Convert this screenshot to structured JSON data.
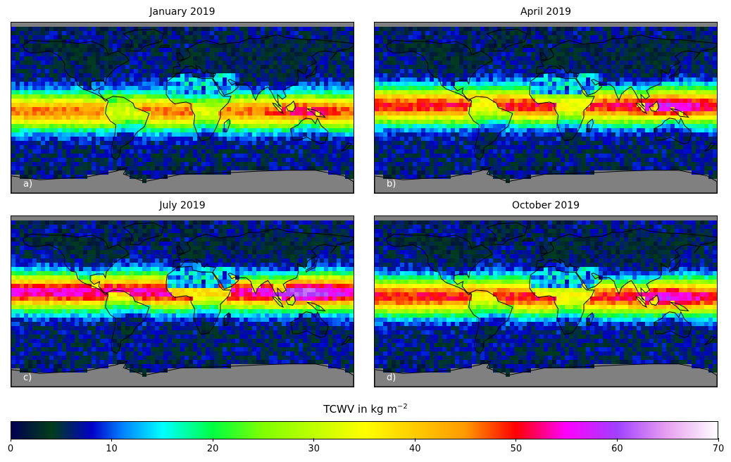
{
  "panels": [
    {
      "title": "January 2019",
      "label": "a)",
      "itcz_shift": -4,
      "wet_strength": 0.9
    },
    {
      "title": "April 2019",
      "label": "b)",
      "itcz_shift": 2,
      "wet_strength": 1.0
    },
    {
      "title": "July 2019",
      "label": "c)",
      "itcz_shift": 10,
      "wet_strength": 1.1
    },
    {
      "title": "October 2019",
      "label": "d)",
      "itcz_shift": 5,
      "wet_strength": 1.0
    }
  ],
  "colorbar": {
    "title_main": "TCWV in kg m",
    "title_exp": "−2",
    "ticks": [
      "0",
      "10",
      "20",
      "30",
      "40",
      "50",
      "60",
      "70"
    ],
    "min": 0,
    "max": 70,
    "stops": [
      {
        "v": 0,
        "c": "#000050"
      },
      {
        "v": 4,
        "c": "#003d1a"
      },
      {
        "v": 8,
        "c": "#0000c8"
      },
      {
        "v": 11,
        "c": "#0080ff"
      },
      {
        "v": 15,
        "c": "#00ffff"
      },
      {
        "v": 20,
        "c": "#00ff40"
      },
      {
        "v": 25,
        "c": "#80ff00"
      },
      {
        "v": 35,
        "c": "#ffff00"
      },
      {
        "v": 45,
        "c": "#ff9900"
      },
      {
        "v": 50,
        "c": "#ff0000"
      },
      {
        "v": 55,
        "c": "#ff00ff"
      },
      {
        "v": 60,
        "c": "#a040ff"
      },
      {
        "v": 65,
        "c": "#e8a0f0"
      },
      {
        "v": 70,
        "c": "#ffffff"
      }
    ]
  },
  "colors": {
    "land_outline": "#000000",
    "missing": "#808080"
  }
}
